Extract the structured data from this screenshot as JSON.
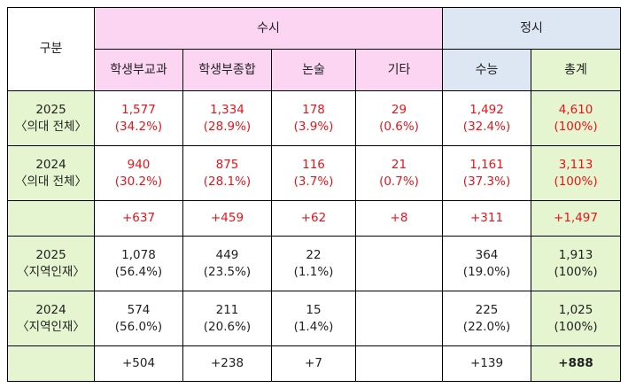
{
  "header": {
    "category": "구분",
    "susi": "수시",
    "jeongsi": "정시",
    "cols": [
      "학생부교과",
      "학생부종합",
      "논술",
      "기타",
      "수능",
      "총계"
    ]
  },
  "rows": [
    {
      "label1": "2025",
      "label2": "〈의대 전체〉",
      "cells": [
        {
          "v": "1,577",
          "p": "(34.2%)"
        },
        {
          "v": "1,334",
          "p": "(28.9%)"
        },
        {
          "v": "178",
          "p": "(3.9%)"
        },
        {
          "v": "29",
          "p": "(0.6%)"
        },
        {
          "v": "1,492",
          "p": "(32.4%)"
        },
        {
          "v": "4,610",
          "p": "(100%)"
        }
      ]
    },
    {
      "label1": "2024",
      "label2": "〈의대 전체〉",
      "cells": [
        {
          "v": "940",
          "p": "(30.2%)"
        },
        {
          "v": "875",
          "p": "(28.1%)"
        },
        {
          "v": "116",
          "p": "(3.7%)"
        },
        {
          "v": "21",
          "p": "(0.7%)"
        },
        {
          "v": "1,161",
          "p": "(37.3%)"
        },
        {
          "v": "3,113",
          "p": "(100%)"
        }
      ]
    },
    {
      "diff": [
        "+637",
        "+459",
        "+62",
        "+8",
        "+311",
        "+1,497"
      ]
    },
    {
      "label1": "2025",
      "label2": "〈지역인재〉",
      "cells": [
        {
          "v": "1,078",
          "p": "(56.4%)"
        },
        {
          "v": "449",
          "p": "(23.5%)"
        },
        {
          "v": "22",
          "p": "(1.1%)"
        },
        {
          "v": "",
          "p": ""
        },
        {
          "v": "364",
          "p": "(19.0%)"
        },
        {
          "v": "1,913",
          "p": "(100%)"
        }
      ]
    },
    {
      "label1": "2024",
      "label2": "〈지역인재〉",
      "cells": [
        {
          "v": "574",
          "p": "(56.0%)"
        },
        {
          "v": "211",
          "p": "(20.6%)"
        },
        {
          "v": "15",
          "p": "(1.4%)"
        },
        {
          "v": "",
          "p": ""
        },
        {
          "v": "225",
          "p": "(22.0%)"
        },
        {
          "v": "1,025",
          "p": "(100%)"
        }
      ]
    },
    {
      "diff": [
        "+504",
        "+238",
        "+7",
        "",
        "+139",
        "+888"
      ]
    }
  ],
  "colors": {
    "pink": "#fcd5f2",
    "blue": "#dde7f3",
    "green": "#e4f5cf",
    "red": "#e8141b"
  }
}
